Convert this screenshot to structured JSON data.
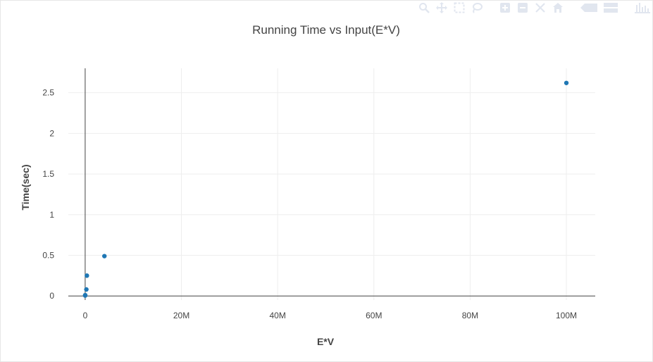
{
  "chart_data": {
    "type": "scatter",
    "title": "Running Time vs Input(E*V)",
    "xlabel": "E*V",
    "ylabel": "Time(sec)",
    "xlim": [
      -3500000,
      106000000
    ],
    "ylim": [
      -0.05,
      2.8
    ],
    "x_ticks": [
      0,
      20000000,
      40000000,
      60000000,
      80000000,
      100000000
    ],
    "x_tick_labels": [
      "0",
      "20M",
      "40M",
      "60M",
      "80M",
      "100M"
    ],
    "y_ticks": [
      0,
      0.5,
      1,
      1.5,
      2,
      2.5
    ],
    "y_tick_labels": [
      "0",
      "0.5",
      "1",
      "1.5",
      "2",
      "2.5"
    ],
    "grid": true,
    "marker_color": "#1f77b4",
    "series": [
      {
        "x": [
          0,
          10000,
          250000,
          360000,
          4000000,
          100000000
        ],
        "y": [
          0.005,
          0.01,
          0.08,
          0.25,
          0.49,
          2.62
        ]
      }
    ]
  },
  "modebar": {
    "icons": [
      "zoom-icon",
      "pan-icon",
      "box-select-icon",
      "lasso-select-icon",
      "zoom-in-icon",
      "zoom-out-icon",
      "autoscale-icon",
      "reset-axes-icon",
      "hover-closest-icon",
      "hover-compare-icon",
      "plotly-logo-icon"
    ],
    "color": "#e1e6ef"
  }
}
